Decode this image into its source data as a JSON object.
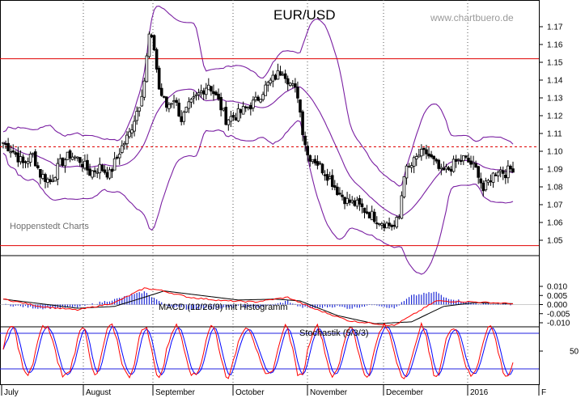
{
  "chart_data": [
    {
      "type": "candlestick",
      "title": "EUR/USD",
      "watermark": "www.chartbuero.de",
      "source_label": "Hoppenstedt Charts",
      "y_ticks": [
        "1.17",
        "1.16",
        "1.15",
        "1.14",
        "1.13",
        "1.12",
        "1.11",
        "1.10",
        "1.09",
        "1.08",
        "1.07",
        "1.06",
        "1.05"
      ],
      "ylim": [
        1.044,
        1.177
      ],
      "resistance_lines": [
        1.152,
        1.047
      ],
      "dotted_level": 1.1025,
      "price_anchors": [
        [
          0,
          1.105
        ],
        [
          4,
          1.1
        ],
        [
          8,
          1.093
        ],
        [
          12,
          1.098
        ],
        [
          15,
          1.087
        ],
        [
          19,
          1.083
        ],
        [
          23,
          1.093
        ],
        [
          27,
          1.098
        ],
        [
          31,
          1.095
        ],
        [
          35,
          1.088
        ],
        [
          39,
          1.091
        ],
        [
          43,
          1.087
        ],
        [
          47,
          1.1
        ],
        [
          51,
          1.11
        ],
        [
          55,
          1.127
        ],
        [
          57,
          1.14
        ],
        [
          59,
          1.165
        ],
        [
          61,
          1.158
        ],
        [
          63,
          1.135
        ],
        [
          66,
          1.125
        ],
        [
          69,
          1.13
        ],
        [
          72,
          1.118
        ],
        [
          75,
          1.125
        ],
        [
          79,
          1.132
        ],
        [
          83,
          1.138
        ],
        [
          87,
          1.128
        ],
        [
          90,
          1.118
        ],
        [
          94,
          1.12
        ],
        [
          98,
          1.124
        ],
        [
          102,
          1.128
        ],
        [
          106,
          1.136
        ],
        [
          110,
          1.142
        ],
        [
          113,
          1.146
        ],
        [
          116,
          1.138
        ],
        [
          119,
          1.132
        ],
        [
          121,
          1.112
        ],
        [
          123,
          1.098
        ],
        [
          126,
          1.095
        ],
        [
          129,
          1.09
        ],
        [
          132,
          1.085
        ],
        [
          135,
          1.078
        ],
        [
          139,
          1.072
        ],
        [
          143,
          1.07
        ],
        [
          147,
          1.066
        ],
        [
          151,
          1.062
        ],
        [
          155,
          1.059
        ],
        [
          158,
          1.058
        ],
        [
          160,
          1.063
        ],
        [
          162,
          1.088
        ],
        [
          165,
          1.092
        ],
        [
          168,
          1.098
        ],
        [
          171,
          1.099
        ],
        [
          174,
          1.094
        ],
        [
          177,
          1.088
        ],
        [
          180,
          1.09
        ],
        [
          183,
          1.094
        ],
        [
          186,
          1.096
        ],
        [
          189,
          1.093
        ],
        [
          192,
          1.088
        ],
        [
          194,
          1.078
        ],
        [
          197,
          1.085
        ],
        [
          200,
          1.09
        ],
        [
          203,
          1.088
        ],
        [
          206,
          1.091
        ]
      ],
      "x_axis_months": [
        "July",
        "August",
        "September",
        "October",
        "November",
        "December",
        "2016",
        "F"
      ]
    },
    {
      "type": "line",
      "title": "MACD (12/26/9) mit Histogramm",
      "y_ticks": [
        "0.010",
        "0.005",
        "0.000",
        "-0.005",
        "-0.010"
      ],
      "ylim": [
        -0.0135,
        0.0125
      ],
      "series": [
        {
          "name": "MACD",
          "color": "#ff0000"
        },
        {
          "name": "Signal",
          "color": "#000000"
        },
        {
          "name": "Histogramm",
          "color": "#0000ff"
        }
      ],
      "macd_anchors": [
        [
          0,
          0.003
        ],
        [
          15,
          -0.001
        ],
        [
          30,
          -0.003
        ],
        [
          45,
          0.001
        ],
        [
          57,
          0.009
        ],
        [
          63,
          0.008
        ],
        [
          75,
          0.004
        ],
        [
          90,
          0.002
        ],
        [
          102,
          0.0015
        ],
        [
          115,
          0.004
        ],
        [
          125,
          -0.002
        ],
        [
          140,
          -0.009
        ],
        [
          158,
          -0.0115
        ],
        [
          165,
          -0.006
        ],
        [
          175,
          0.002
        ],
        [
          190,
          0.0015
        ],
        [
          206,
          0.0005
        ]
      ],
      "signal_anchors": [
        [
          0,
          0.003
        ],
        [
          15,
          0.0005
        ],
        [
          30,
          -0.002
        ],
        [
          45,
          -0.001
        ],
        [
          57,
          0.004
        ],
        [
          65,
          0.0075
        ],
        [
          80,
          0.005
        ],
        [
          95,
          0.0025
        ],
        [
          110,
          0.003
        ],
        [
          120,
          0.002
        ],
        [
          135,
          -0.006
        ],
        [
          150,
          -0.0105
        ],
        [
          165,
          -0.0095
        ],
        [
          178,
          -0.001
        ],
        [
          190,
          0.001
        ],
        [
          206,
          0.0005
        ]
      ]
    },
    {
      "type": "line",
      "title": "Stochastik (5/3/3)",
      "y_ticks": [
        "50"
      ],
      "ylim": [
        0,
        100
      ],
      "reference_lines": [
        80,
        20
      ],
      "series": [
        {
          "name": "%K",
          "color": "#ff0000"
        },
        {
          "name": "%D",
          "color": "#0000ff"
        }
      ]
    }
  ]
}
